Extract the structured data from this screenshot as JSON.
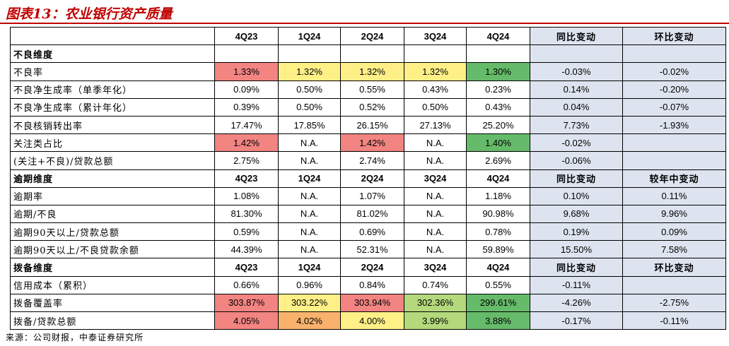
{
  "title": "图表13：农业银行资产质量",
  "columns": {
    "periods": [
      "4Q23",
      "1Q24",
      "2Q24",
      "3Q24",
      "4Q24"
    ],
    "yoy": "同比变动",
    "qoq": "环比变动",
    "ytd": "较年中变动"
  },
  "sections": {
    "npl": "不良维度",
    "overdue": "逾期维度",
    "provision": "拨备维度"
  },
  "rows": [
    {
      "label": "不良率",
      "values": [
        "1.33%",
        "1.32%",
        "1.32%",
        "1.32%",
        "1.30%"
      ],
      "yoy": "-0.03%",
      "qoq": "-0.02%"
    },
    {
      "label": "不良净生成率（单季年化）",
      "values": [
        "0.09%",
        "0.50%",
        "0.55%",
        "0.43%",
        "0.23%"
      ],
      "yoy": "0.14%",
      "qoq": "-0.20%"
    },
    {
      "label": "不良净生成率（累计年化）",
      "values": [
        "0.39%",
        "0.50%",
        "0.52%",
        "0.50%",
        "0.43%"
      ],
      "yoy": "0.04%",
      "qoq": "-0.07%"
    },
    {
      "label": "不良核销转出率",
      "values": [
        "17.47%",
        "17.85%",
        "26.15%",
        "27.13%",
        "25.20%"
      ],
      "yoy": "7.73%",
      "qoq": "-1.93%"
    },
    {
      "label": "关注类占比",
      "values": [
        "1.42%",
        "N.A.",
        "1.42%",
        "N.A.",
        "1.40%"
      ],
      "yoy": "-0.02%",
      "qoq": ""
    },
    {
      "label": "(关注+不良)/贷款总额",
      "values": [
        "2.75%",
        "N.A.",
        "2.74%",
        "N.A.",
        "2.69%"
      ],
      "yoy": "-0.06%",
      "qoq": ""
    },
    {
      "label": "逾期率",
      "values": [
        "1.08%",
        "N.A.",
        "1.07%",
        "N.A.",
        "1.18%"
      ],
      "yoy": "0.10%",
      "qoq": "0.11%"
    },
    {
      "label": "逾期/不良",
      "values": [
        "81.30%",
        "N.A.",
        "81.02%",
        "N.A.",
        "90.98%"
      ],
      "yoy": "9.68%",
      "qoq": "9.96%"
    },
    {
      "label": "逾期90天以上/贷款总额",
      "values": [
        "0.59%",
        "N.A.",
        "0.69%",
        "N.A.",
        "0.78%"
      ],
      "yoy": "0.19%",
      "qoq": "0.09%"
    },
    {
      "label": "逾期90天以上/不良贷款余额",
      "values": [
        "44.39%",
        "N.A.",
        "52.31%",
        "N.A.",
        "59.89%"
      ],
      "yoy": "15.50%",
      "qoq": "7.58%"
    },
    {
      "label": "信用成本（累积）",
      "values": [
        "0.66%",
        "0.96%",
        "0.84%",
        "0.74%",
        "0.55%"
      ],
      "yoy": "-0.11%",
      "qoq": ""
    },
    {
      "label": "拨备覆盖率",
      "values": [
        "303.87%",
        "303.22%",
        "303.94%",
        "302.36%",
        "299.61%"
      ],
      "yoy": "-4.26%",
      "qoq": "-2.75%"
    },
    {
      "label": "拨备/贷款总额",
      "values": [
        "4.05%",
        "4.02%",
        "4.00%",
        "3.99%",
        "3.88%"
      ],
      "yoy": "-0.17%",
      "qoq": "-0.11%"
    }
  ],
  "heat_colors": {
    "red": "#f28482",
    "orange": "#f9b26c",
    "yellow": "#fef087",
    "light_green": "#b3d97c",
    "green": "#66bb6a",
    "change_bg": "#dde4ef",
    "title_red": "#c00000"
  },
  "source": "来源：公司财报，中泰证券研究所"
}
